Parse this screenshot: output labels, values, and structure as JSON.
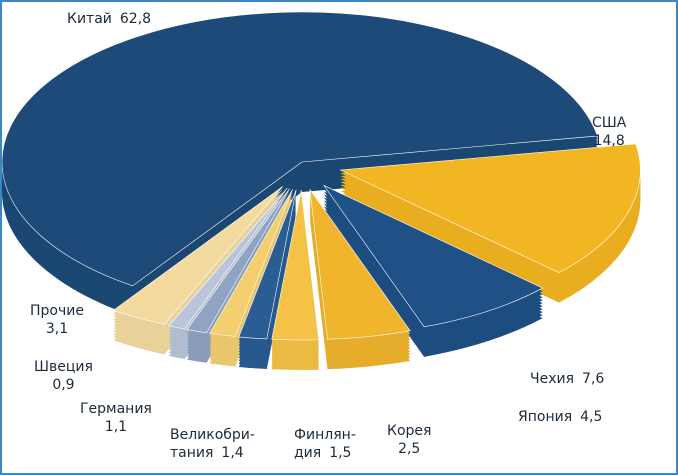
{
  "chart_data": {
    "type": "pie",
    "categories": [
      "Китай",
      "США",
      "Чехия",
      "Япония",
      "Корея",
      "Финлян-\nдия",
      "Великобри-\nтания",
      "Германия",
      "Швеция",
      "Прочие"
    ],
    "values": [
      62.8,
      14.8,
      7.6,
      4.5,
      2.5,
      1.5,
      1.4,
      1.1,
      0.9,
      3.1
    ],
    "value_labels": [
      "62,8",
      "14,8",
      "7,6",
      "4,5",
      "2,5",
      "1,5",
      "1,4",
      "1,1",
      "0,9",
      "3,1"
    ],
    "colors": [
      "#1d4a78",
      "#f2b622",
      "#1f5186",
      "#f0b52c",
      "#f4c246",
      "#2a5d93",
      "#f3cf70",
      "#8fa3c2",
      "#b9c5d8",
      "#f3dba0"
    ]
  }
}
